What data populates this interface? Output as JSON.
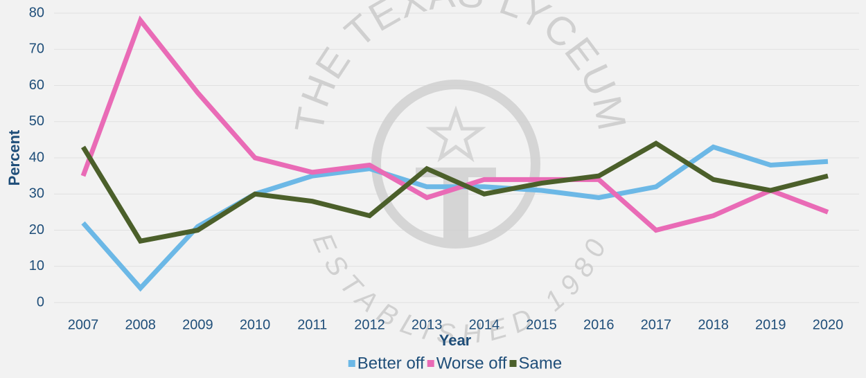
{
  "chart_data": {
    "type": "line",
    "watermark": {
      "top": "THE TEXAS LYCEUM",
      "bottom": "ESTABLISHED 1980"
    },
    "x_label": "Year",
    "y_label": "Percent",
    "categories": [
      "2007",
      "2008",
      "2009",
      "2010",
      "2011",
      "2012",
      "2013",
      "2014",
      "2015",
      "2016",
      "2017",
      "2018",
      "2019",
      "2020"
    ],
    "series": [
      {
        "name": "Better off",
        "color": "#6cb8e6",
        "values": [
          22,
          4,
          21,
          30,
          35,
          37,
          32,
          32,
          31,
          29,
          32,
          43,
          38,
          39
        ]
      },
      {
        "name": "Worse off",
        "color": "#e96bb6",
        "values": [
          35,
          78,
          58,
          40,
          36,
          38,
          29,
          34,
          34,
          34,
          20,
          24,
          31,
          25
        ]
      },
      {
        "name": "Same",
        "color": "#4b5f2a",
        "values": [
          43,
          17,
          20,
          30,
          28,
          24,
          37,
          30,
          33,
          35,
          44,
          34,
          31,
          35
        ]
      }
    ],
    "ylim": [
      0,
      80
    ],
    "yticks": [
      0,
      10,
      20,
      30,
      40,
      50,
      60,
      70,
      80
    ],
    "grid": true,
    "legend": "bottom"
  }
}
